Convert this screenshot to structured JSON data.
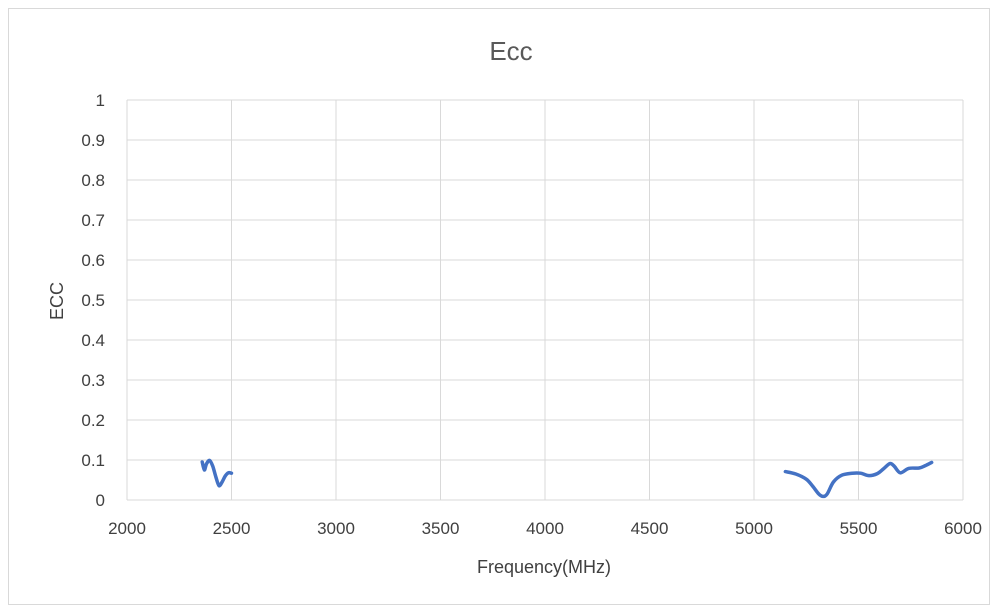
{
  "chart_data": {
    "type": "line",
    "title": "Ecc",
    "xlabel": "Frequency(MHz)",
    "ylabel": "ECC",
    "xlim": [
      2000,
      6000
    ],
    "ylim": [
      0,
      1
    ],
    "x_ticks": [
      2000,
      2500,
      3000,
      3500,
      4000,
      4500,
      5000,
      5500,
      6000
    ],
    "y_ticks": [
      0,
      0.1,
      0.2,
      0.3,
      0.4,
      0.5,
      0.6,
      0.7,
      0.8,
      0.9,
      1
    ],
    "y_tick_labels": [
      "0",
      "0.1",
      "0.2",
      "0.3",
      "0.4",
      "0.5",
      "0.6",
      "0.7",
      "0.8",
      "0.9",
      "1"
    ],
    "grid": true,
    "line_color": "#4472c4",
    "series": [
      {
        "segments": [
          [
            [
              2360,
              0.095
            ],
            [
              2370,
              0.075
            ],
            [
              2380,
              0.09
            ],
            [
              2395,
              0.099
            ],
            [
              2410,
              0.085
            ],
            [
              2425,
              0.058
            ],
            [
              2440,
              0.036
            ],
            [
              2455,
              0.045
            ],
            [
              2470,
              0.06
            ],
            [
              2485,
              0.068
            ],
            [
              2500,
              0.067
            ]
          ],
          [
            [
              5150,
              0.071
            ],
            [
              5200,
              0.065
            ],
            [
              5250,
              0.052
            ],
            [
              5280,
              0.035
            ],
            [
              5310,
              0.015
            ],
            [
              5330,
              0.009
            ],
            [
              5350,
              0.015
            ],
            [
              5380,
              0.045
            ],
            [
              5420,
              0.062
            ],
            [
              5470,
              0.067
            ],
            [
              5510,
              0.067
            ],
            [
              5550,
              0.061
            ],
            [
              5590,
              0.066
            ],
            [
              5620,
              0.078
            ],
            [
              5650,
              0.091
            ],
            [
              5670,
              0.085
            ],
            [
              5700,
              0.068
            ],
            [
              5740,
              0.079
            ],
            [
              5790,
              0.08
            ],
            [
              5820,
              0.086
            ],
            [
              5850,
              0.094
            ]
          ]
        ]
      }
    ]
  }
}
